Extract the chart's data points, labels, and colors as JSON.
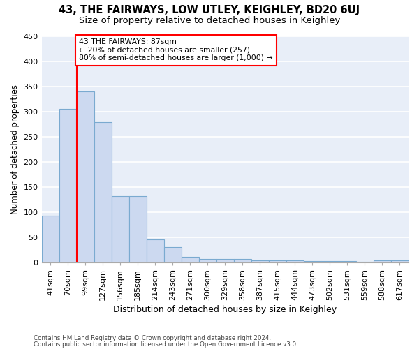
{
  "title": "43, THE FAIRWAYS, LOW UTLEY, KEIGHLEY, BD20 6UJ",
  "subtitle": "Size of property relative to detached houses in Keighley",
  "xlabel": "Distribution of detached houses by size in Keighley",
  "ylabel": "Number of detached properties",
  "footer1": "Contains HM Land Registry data © Crown copyright and database right 2024.",
  "footer2": "Contains public sector information licensed under the Open Government Licence v3.0.",
  "categories": [
    "41sqm",
    "70sqm",
    "99sqm",
    "127sqm",
    "156sqm",
    "185sqm",
    "214sqm",
    "243sqm",
    "271sqm",
    "300sqm",
    "329sqm",
    "358sqm",
    "387sqm",
    "415sqm",
    "444sqm",
    "473sqm",
    "502sqm",
    "531sqm",
    "559sqm",
    "588sqm",
    "617sqm"
  ],
  "values": [
    93,
    305,
    340,
    278,
    131,
    131,
    46,
    31,
    11,
    7,
    7,
    7,
    4,
    4,
    4,
    2,
    2,
    2,
    1,
    4,
    4
  ],
  "bar_color": "#ccd9f0",
  "bar_edge_color": "#7aaad0",
  "vline_x": 1.5,
  "vline_color": "red",
  "annotation_text": "43 THE FAIRWAYS: 87sqm\n← 20% of detached houses are smaller (257)\n80% of semi-detached houses are larger (1,000) →",
  "annotation_box_color": "white",
  "annotation_box_edge": "red",
  "ylim": [
    0,
    450
  ],
  "yticks": [
    0,
    50,
    100,
    150,
    200,
    250,
    300,
    350,
    400,
    450
  ],
  "background_color": "#e8eef8",
  "grid_color": "white",
  "title_fontsize": 10.5,
  "subtitle_fontsize": 9.5,
  "xlabel_fontsize": 9,
  "ylabel_fontsize": 8.5,
  "tick_fontsize": 8,
  "annot_fontsize": 7.8
}
